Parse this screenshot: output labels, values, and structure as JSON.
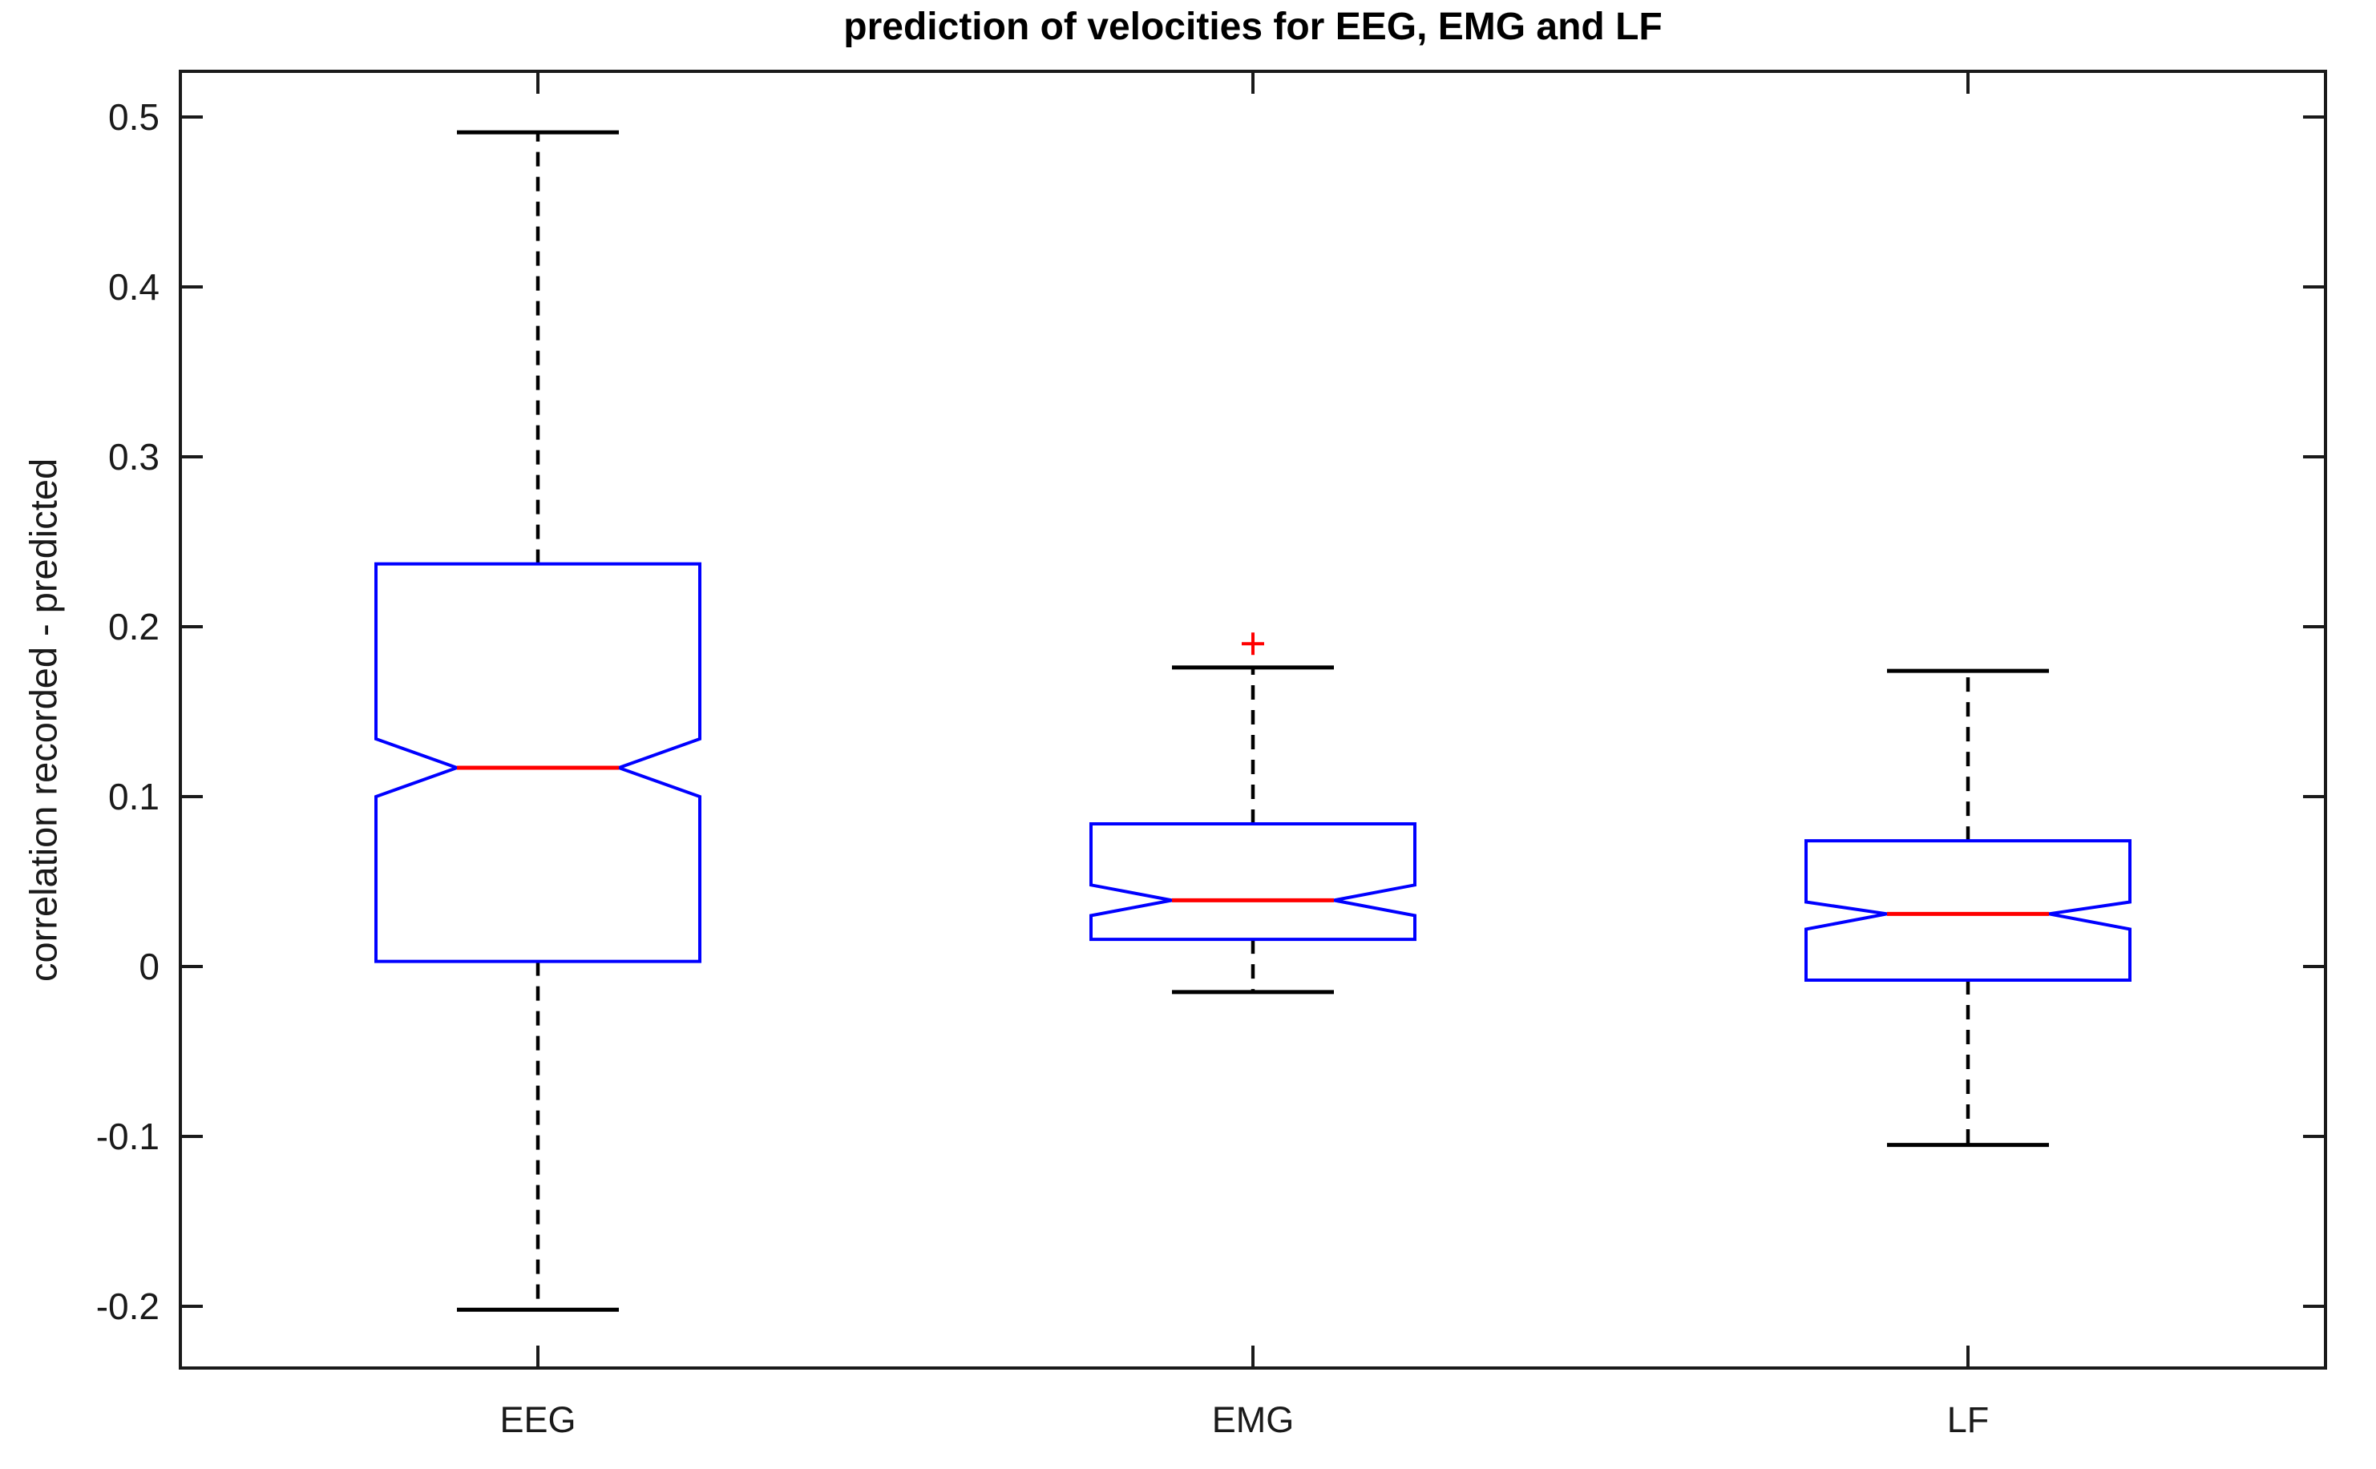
{
  "title": "prediction of velocities for EEG, EMG and LF",
  "ylabel": "correlation recorded - predicted",
  "colors": {
    "background": "#ffffff",
    "axis": "#1a1a1a",
    "tick_text": "#1a1a1a",
    "title_text": "#000000",
    "box": "#0000ff",
    "median": "#ff0000",
    "outlier": "#ff0000",
    "whisker": "#000000"
  },
  "chart_data": {
    "type": "boxplot",
    "notched": true,
    "title": "prediction of velocities for EEG, EMG and LF",
    "xlabel": "",
    "ylabel": "correlation recorded - predicted",
    "categories": [
      "EEG",
      "EMG",
      "LF"
    ],
    "ylim": [
      -0.2363,
      0.5269
    ],
    "yticks": [
      -0.2,
      -0.1,
      0,
      0.1,
      0.2,
      0.3,
      0.4,
      0.5
    ],
    "ytick_labels": [
      "-0.2",
      "-0.1",
      "0",
      "0.1",
      "0.2",
      "0.3",
      "0.4",
      "0.5"
    ],
    "grid": false,
    "legend": "none",
    "series": [
      {
        "name": "EEG",
        "whisker_low": -0.202,
        "q1": 0.003,
        "median": 0.117,
        "q3": 0.237,
        "whisker_high": 0.491,
        "notch_low": 0.1,
        "notch_high": 0.134,
        "outliers": []
      },
      {
        "name": "EMG",
        "whisker_low": -0.015,
        "q1": 0.016,
        "median": 0.039,
        "q3": 0.084,
        "whisker_high": 0.176,
        "notch_low": 0.03,
        "notch_high": 0.048,
        "outliers": [
          0.19
        ]
      },
      {
        "name": "LF",
        "whisker_low": -0.105,
        "q1": -0.008,
        "median": 0.031,
        "q3": 0.074,
        "whisker_high": 0.174,
        "notch_low": 0.022,
        "notch_high": 0.038,
        "outliers": []
      }
    ]
  }
}
